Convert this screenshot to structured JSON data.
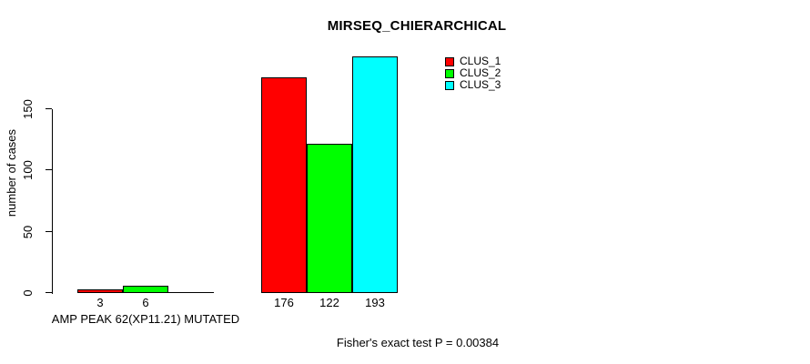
{
  "chart_data": {
    "type": "bar",
    "title": "MIRSEQ_CHIERARCHICAL",
    "ylabel": "number of cases",
    "xlabel": "AMP PEAK 62(XP11.21) MUTATED",
    "annotation": "Fisher's exact test P = 0.00384",
    "ylim": [
      0,
      200
    ],
    "yticks": [
      0,
      50,
      100,
      150
    ],
    "grid": false,
    "legend_position": "top-right",
    "background_color": "#ffffff",
    "categories": [
      "AMP PEAK 62(XP11.21) MUTATED",
      ""
    ],
    "series": [
      {
        "name": "CLUS_1",
        "color": "#ff0000",
        "values": [
          3,
          176
        ]
      },
      {
        "name": "CLUS_2",
        "color": "#00ff00",
        "values": [
          6,
          122
        ]
      },
      {
        "name": "CLUS_3",
        "color": "#00ffff",
        "values": [
          0,
          193
        ]
      }
    ],
    "bar_value_labels": [
      [
        "3",
        "6",
        ""
      ],
      [
        "176",
        "122",
        "193"
      ]
    ],
    "legend": [
      "CLUS_1",
      "CLUS_2",
      "CLUS_3"
    ]
  }
}
